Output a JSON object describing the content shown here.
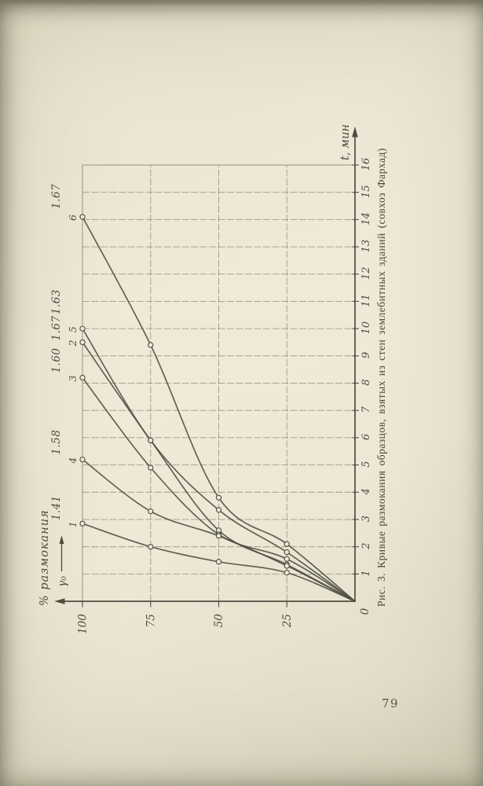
{
  "page": {
    "number": "79"
  },
  "figure": {
    "caption": "Рис. 3. Кривые размокания образцов, взятых из стен землебитных зданий (совхоз Фархад)"
  },
  "chart_data": {
    "type": "line",
    "title": "Рис. 3. Кривые размокания образцов, взятых из стен землебитных зданий (совхоз Фархад)",
    "xlabel": "t, мин",
    "ylabel": "% размокания",
    "density_axis_label": "γ₀",
    "origin_label": "0",
    "xlim": [
      0,
      17
    ],
    "ylim": [
      0,
      100
    ],
    "x_ticks": [
      1,
      2,
      3,
      4,
      5,
      6,
      7,
      8,
      9,
      10,
      11,
      12,
      13,
      14,
      15,
      16
    ],
    "y_ticks": [
      100,
      75,
      50,
      25
    ],
    "grid": true,
    "legend_position": "curve-endpoint-labels",
    "marker": "open-circle",
    "y_percent": [
      0,
      25,
      50,
      75,
      100
    ],
    "series": [
      {
        "curve": "1",
        "gamma": "1.41",
        "t_min": [
          0,
          1.05,
          1.45,
          2.0,
          2.85
        ]
      },
      {
        "curve": "2",
        "gamma": "1.67",
        "t_min": [
          0,
          1.35,
          2.6,
          5.9,
          9.5
        ]
      },
      {
        "curve": "3",
        "gamma": "1.60",
        "t_min": [
          0,
          1.55,
          2.45,
          4.9,
          8.2
        ]
      },
      {
        "curve": "4",
        "gamma": "1.58",
        "t_min": [
          0,
          1.3,
          2.4,
          3.3,
          5.2
        ]
      },
      {
        "curve": "5",
        "gamma": "1.63",
        "t_min": [
          0,
          1.8,
          3.35,
          5.9,
          10.0
        ]
      },
      {
        "curve": "6",
        "gamma": "1.67",
        "t_min": [
          0,
          2.1,
          3.8,
          9.4,
          14.1
        ]
      }
    ],
    "colors": {
      "ink": "#4e4d42",
      "grid": "#8b8875",
      "paper": "#ece7d4"
    }
  }
}
